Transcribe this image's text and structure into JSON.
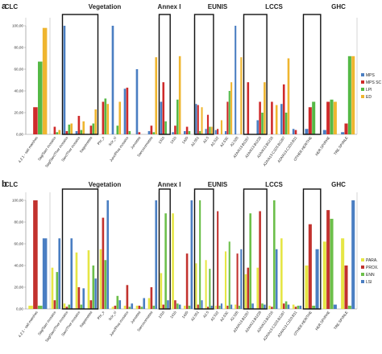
{
  "chart_data": [
    {
      "type": "bar",
      "panel": "a",
      "ylim": [
        0,
        100
      ],
      "yticks": [
        "0,00",
        "20,00",
        "40,00",
        "60,00",
        "80,00",
        "100,00"
      ],
      "groups": [
        {
          "label": "CLC",
          "size": 1
        },
        {
          "label": "Vegetation",
          "size": 9
        },
        {
          "label": "Annex I",
          "size": 3
        },
        {
          "label": "EUNIS",
          "size": 5
        },
        {
          "label": "LCCS",
          "size": 5
        },
        {
          "label": "GHC",
          "size": 3
        }
      ],
      "categories": [
        "4.2.1 - salt marshes",
        "Sag/Sarc mosaics",
        "Sag/Sarc/Ther mosaics",
        "Sarc/Ther mosaics",
        "Sagsenetea",
        "Phr_s",
        "Scir_cl",
        "Junc/Phra mosaics",
        "Juncetea",
        "Sarcocornietea",
        "1310",
        "1410",
        "1420",
        "A2.551",
        "A2.5",
        "A2.522",
        "A2.53C",
        "A2.526",
        "A2A/A13.B1267",
        "A2A/A13.B1228",
        "A2A/A13.B1216",
        "A2A/A13.C1D3.B1267",
        "A2A/A13.C1D3.B11",
        "OTHER.HER/THE",
        "HER.SPI/PHE",
        "TRE.SPI/NLE"
      ],
      "series": [
        {
          "name": "MPS",
          "color": "#4a7ec2",
          "values": [
            0,
            0,
            100,
            3,
            0,
            0,
            100,
            42,
            60,
            3,
            30,
            2,
            3,
            28,
            5,
            4,
            3,
            100,
            0,
            13,
            0,
            28,
            5,
            5,
            4,
            2
          ]
        },
        {
          "name": "MPS SC",
          "color": "#cf2a2a",
          "values": [
            25,
            7,
            3,
            17,
            8,
            30,
            0,
            43,
            2,
            8,
            48,
            8,
            7,
            27,
            18,
            5,
            30,
            0,
            48,
            30,
            30,
            46,
            4,
            25,
            30,
            10
          ]
        },
        {
          "name": "LPI",
          "color": "#55b946",
          "values": [
            67,
            2,
            9,
            4,
            10,
            33,
            8,
            3,
            0,
            2,
            12,
            32,
            3,
            3,
            7,
            0,
            40,
            0,
            0,
            20,
            0,
            20,
            0,
            30,
            32,
            72
          ]
        },
        {
          "name": "ED",
          "color": "#efb52f",
          "values": [
            98,
            4,
            10,
            12,
            23,
            28,
            30,
            0,
            0,
            71,
            0,
            72,
            0,
            25,
            7,
            13,
            48,
            71,
            0,
            48,
            27,
            70,
            0,
            0,
            30,
            72
          ]
        }
      ],
      "highlight_boxes": [
        [
          2,
          4
        ],
        [
          10,
          10
        ],
        [
          13,
          14
        ],
        [
          18,
          19
        ],
        [
          23,
          23
        ]
      ],
      "legend": {
        "position": "right",
        "entries": [
          "MPS",
          "MPS SC",
          "LPI",
          "ED"
        ]
      }
    },
    {
      "type": "bar",
      "panel": "b",
      "ylim": [
        0,
        100
      ],
      "yticks": [
        "0,00",
        "20,00",
        "40,00",
        "60,00",
        "80,00",
        "100,00"
      ],
      "groups": [
        {
          "label": "CLC",
          "size": 1
        },
        {
          "label": "Vegetation",
          "size": 9
        },
        {
          "label": "Annex I",
          "size": 3
        },
        {
          "label": "EUNIS",
          "size": 5
        },
        {
          "label": "LCCS",
          "size": 5
        },
        {
          "label": "GHC",
          "size": 3
        }
      ],
      "categories": [
        "4.2.1 - salt marshes",
        "Sag/Sarc mosaics",
        "Sag/Sarc/Ther mosaics",
        "Sarc/Ther mosaics",
        "Sagsenetea",
        "Phr_s",
        "Scir_cl",
        "Junc/Phra mosaics",
        "Juncetea",
        "Sarcocornietea",
        "1310",
        "1410",
        "1420",
        "A2.551",
        "A2.5",
        "A2.522",
        "A2.53C",
        "A2.526",
        "A2A/A13.B1267",
        "A2A/A13.B1228",
        "A2A/A13.B1216",
        "A2A/A13.C1D3.B1267",
        "A2A/A13.C1D3.B11",
        "OTHER.HER/THE",
        "HER.SPI/PHE",
        "TRE.SPI/NLE"
      ],
      "series": [
        {
          "name": "PARA.",
          "color": "#e6e645",
          "values": [
            3,
            38,
            5,
            52,
            54,
            55,
            2,
            3,
            3,
            10,
            33,
            88,
            3,
            42,
            45,
            3,
            53,
            4,
            32,
            38,
            3,
            65,
            4,
            40,
            62,
            65
          ]
        },
        {
          "name": "PROX.",
          "color": "#c2322e",
          "values": [
            100,
            8,
            2,
            20,
            8,
            84,
            3,
            22,
            3,
            20,
            4,
            8,
            51,
            4,
            2,
            90,
            3,
            51,
            38,
            90,
            2,
            5,
            2,
            78,
            91,
            40
          ]
        },
        {
          "name": "ENN",
          "color": "#6cbf4a",
          "values": [
            3,
            34,
            4,
            4,
            40,
            45,
            12,
            2,
            2,
            3,
            88,
            5,
            3,
            100,
            37,
            3,
            62,
            3,
            88,
            5,
            100,
            7,
            3,
            3,
            83,
            3
          ]
        },
        {
          "name": "LSI",
          "color": "#4a7ec2",
          "values": [
            65,
            65,
            65,
            19,
            28,
            100,
            8,
            5,
            10,
            100,
            8,
            4,
            100,
            8,
            3,
            5,
            4,
            55,
            5,
            4,
            55,
            4,
            3,
            55,
            4,
            100
          ]
        }
      ],
      "highlight_boxes": [
        [
          2,
          4
        ],
        [
          10,
          10
        ],
        [
          13,
          14
        ],
        [
          18,
          19
        ],
        [
          23,
          23
        ]
      ],
      "legend": {
        "position": "right",
        "entries": [
          "PARA.",
          "PROX.",
          "ENN",
          "LSI"
        ]
      }
    }
  ]
}
